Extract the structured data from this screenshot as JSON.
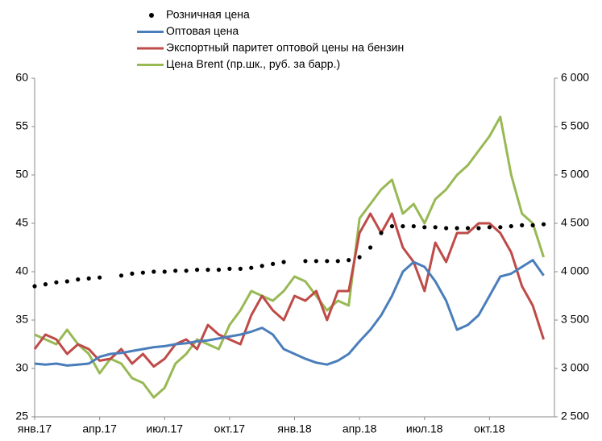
{
  "chart_data": {
    "type": "line",
    "categories": [
      "янв.17",
      null,
      null,
      null,
      null,
      null,
      "апр.17",
      null,
      null,
      null,
      null,
      null,
      "июл.17",
      null,
      null,
      null,
      null,
      null,
      "окт.17",
      null,
      null,
      null,
      null,
      null,
      "янв.18",
      null,
      null,
      null,
      null,
      null,
      "апр.18",
      null,
      null,
      null,
      null,
      null,
      "июл.18",
      null,
      null,
      null,
      null,
      null,
      "окт.18",
      null,
      null,
      null,
      null,
      null
    ],
    "series": [
      {
        "name": "Розничная цена",
        "color": "#000000",
        "style": "dots",
        "values": [
          38.5,
          38.7,
          38.9,
          39.0,
          39.2,
          39.3,
          39.4,
          null,
          39.6,
          39.8,
          39.9,
          40.0,
          40.0,
          40.1,
          40.1,
          40.2,
          40.2,
          40.2,
          40.3,
          40.3,
          40.4,
          40.6,
          40.8,
          41.0,
          null,
          41.1,
          41.1,
          41.1,
          41.1,
          41.2,
          41.5,
          42.5,
          44.0,
          44.7,
          44.7,
          44.7,
          44.6,
          44.6,
          44.5,
          44.5,
          44.5,
          44.5,
          44.6,
          44.6,
          44.7,
          44.8,
          44.8,
          44.9
        ]
      },
      {
        "name": "Оптовая цена",
        "color": "#4a7ebb",
        "values": [
          30.5,
          30.4,
          30.5,
          30.3,
          30.4,
          30.5,
          31.2,
          31.5,
          31.6,
          31.8,
          32.0,
          32.2,
          32.3,
          32.5,
          32.6,
          32.8,
          32.9,
          33.1,
          33.3,
          33.5,
          33.8,
          34.2,
          33.5,
          32.0,
          31.5,
          31.0,
          30.6,
          30.4,
          30.8,
          31.5,
          32.8,
          34.0,
          35.5,
          37.5,
          40.0,
          41.0,
          40.5,
          39.0,
          37.0,
          34.0,
          34.5,
          35.5,
          37.5,
          39.5,
          39.8,
          40.5,
          41.2,
          39.6
        ]
      },
      {
        "name": "Экспортный паритет оптовой цены на бензин",
        "color": "#be4b48",
        "values": [
          32.0,
          33.5,
          33.0,
          31.5,
          32.5,
          32.0,
          30.8,
          31.0,
          32.0,
          30.5,
          31.5,
          30.2,
          31.0,
          32.5,
          33.0,
          32.0,
          34.5,
          33.5,
          33.0,
          32.5,
          35.5,
          37.5,
          36.0,
          35.0,
          37.5,
          37.0,
          38.0,
          35.0,
          38.0,
          38.0,
          44.0,
          46.0,
          44.0,
          46.0,
          42.5,
          41.0,
          38.0,
          43.0,
          41.0,
          44.0,
          44.0,
          45.0,
          45.0,
          44.0,
          42.0,
          38.5,
          36.5,
          33.0
        ]
      },
      {
        "name": "Цена Brent (пр.шк., руб. за барр.)",
        "color": "#98b954",
        "axis": "y2",
        "values": [
          3350,
          3300,
          3250,
          3400,
          3250,
          3150,
          2950,
          3100,
          3050,
          2900,
          2850,
          2700,
          2800,
          3050,
          3150,
          3300,
          3250,
          3200,
          3450,
          3600,
          3800,
          3750,
          3700,
          3800,
          3950,
          3900,
          3750,
          3600,
          3700,
          3650,
          4550,
          4700,
          4850,
          4950,
          4600,
          4700,
          4500,
          4750,
          4850,
          5000,
          5100,
          5250,
          5400,
          5600,
          5000,
          4600,
          4500,
          4150
        ]
      }
    ],
    "ylim": [
      25,
      60
    ],
    "yticks": [
      25,
      30,
      35,
      40,
      45,
      50,
      55,
      60
    ],
    "y2lim": [
      2500,
      6000
    ],
    "y2ticks": [
      {
        "value": 2500,
        "label": "2 500"
      },
      {
        "value": 3000,
        "label": "3 000"
      },
      {
        "value": 3500,
        "label": "3 500"
      },
      {
        "value": 4000,
        "label": "4 000"
      },
      {
        "value": 4500,
        "label": "4 500"
      },
      {
        "value": 5000,
        "label": "5 000"
      },
      {
        "value": 5500,
        "label": "5 500"
      },
      {
        "value": 6000,
        "label": "6 000"
      }
    ],
    "grid": false,
    "legend": "top"
  }
}
